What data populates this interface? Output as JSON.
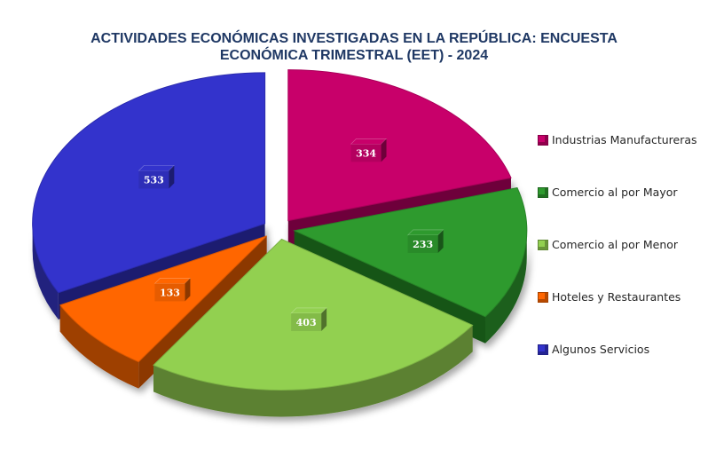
{
  "chart_data": {
    "type": "pie",
    "title_lines": [
      "ACTIVIDADES ECONÓMICAS INVESTIGADAS EN LA REPÚBLICA: ENCUESTA",
      "ECONÓMICA TRIMESTRAL (EET) - 2024"
    ],
    "categories": [
      "Industrias Manufactureras",
      "Comercio al por Mayor",
      "Comercio al por Menor",
      "Hoteles y Restaurantes",
      "Algunos Servicios"
    ],
    "values": [
      334,
      233,
      403,
      133,
      533
    ],
    "colors": [
      "#c8006a",
      "#2e9a2e",
      "#92d050",
      "#ff6600",
      "#3333cc"
    ],
    "legend_position": "right",
    "exploded": true,
    "style": "3d"
  }
}
